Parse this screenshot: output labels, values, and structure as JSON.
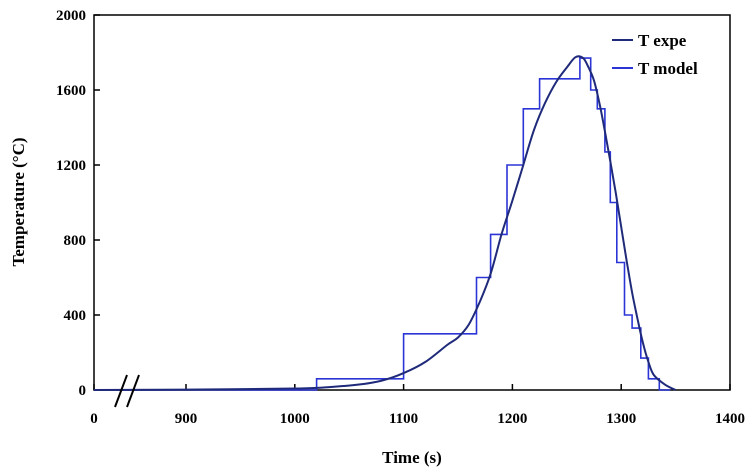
{
  "chart_data": {
    "type": "line",
    "title": "",
    "xlabel": "Time (s)",
    "ylabel": "Temperature (°C)",
    "xlim_display": [
      0,
      1400
    ],
    "x_break": "between 0 and 900 (broken axis)",
    "ylim": [
      0,
      2000
    ],
    "x_tick_labels": [
      "0",
      "900",
      "1000",
      "1100",
      "1200",
      "1300",
      "1400"
    ],
    "x_tick_values": [
      0,
      900,
      1000,
      1100,
      1200,
      1300,
      1400
    ],
    "y_ticks": [
      0,
      400,
      800,
      1200,
      1600,
      2000
    ],
    "grid": false,
    "legend_position": "top-right",
    "series": [
      {
        "name": "T expe",
        "color": "#1f2a7a",
        "style": "smooth",
        "points": [
          [
            0,
            0
          ],
          [
            900,
            2
          ],
          [
            1000,
            8
          ],
          [
            1030,
            15
          ],
          [
            1060,
            30
          ],
          [
            1080,
            50
          ],
          [
            1100,
            90
          ],
          [
            1120,
            150
          ],
          [
            1140,
            240
          ],
          [
            1150,
            280
          ],
          [
            1160,
            350
          ],
          [
            1170,
            470
          ],
          [
            1180,
            620
          ],
          [
            1190,
            830
          ],
          [
            1200,
            1010
          ],
          [
            1210,
            1200
          ],
          [
            1220,
            1390
          ],
          [
            1230,
            1530
          ],
          [
            1240,
            1640
          ],
          [
            1250,
            1720
          ],
          [
            1258,
            1775
          ],
          [
            1265,
            1770
          ],
          [
            1270,
            1720
          ],
          [
            1275,
            1650
          ],
          [
            1280,
            1530
          ],
          [
            1285,
            1380
          ],
          [
            1290,
            1220
          ],
          [
            1295,
            1050
          ],
          [
            1300,
            870
          ],
          [
            1305,
            690
          ],
          [
            1310,
            520
          ],
          [
            1315,
            380
          ],
          [
            1320,
            250
          ],
          [
            1325,
            150
          ],
          [
            1330,
            80
          ],
          [
            1340,
            30
          ],
          [
            1350,
            0
          ]
        ]
      },
      {
        "name": "T model",
        "color": "#2b35d6",
        "style": "step",
        "steps": [
          [
            0,
            1020,
            0
          ],
          [
            1020,
            1100,
            60
          ],
          [
            1100,
            1167,
            300
          ],
          [
            1167,
            1180,
            600
          ],
          [
            1180,
            1195,
            830
          ],
          [
            1195,
            1210,
            1200
          ],
          [
            1210,
            1225,
            1500
          ],
          [
            1225,
            1240,
            1660
          ],
          [
            1240,
            1262,
            1660
          ],
          [
            1262,
            1272,
            1770
          ],
          [
            1272,
            1278,
            1600
          ],
          [
            1278,
            1285,
            1500
          ],
          [
            1285,
            1290,
            1270
          ],
          [
            1290,
            1296,
            1000
          ],
          [
            1296,
            1303,
            680
          ],
          [
            1303,
            1310,
            400
          ],
          [
            1310,
            1318,
            330
          ],
          [
            1318,
            1325,
            170
          ],
          [
            1325,
            1335,
            60
          ],
          [
            1335,
            1345,
            0
          ]
        ]
      }
    ]
  }
}
